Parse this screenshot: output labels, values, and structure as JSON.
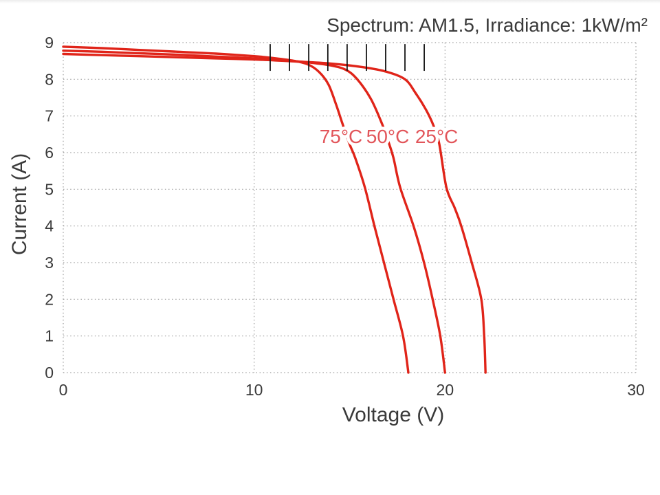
{
  "page": {
    "background": "#ffffff"
  },
  "chart_data": {
    "type": "line",
    "title": "Spectrum: AM1.5, Irradiance: 1kW/m²",
    "xlabel": "Voltage (V)",
    "ylabel": "Current (A)",
    "xlim": [
      0,
      30
    ],
    "ylim": [
      0,
      9
    ],
    "x_ticks": [
      0,
      10,
      20,
      30
    ],
    "y_ticks": [
      0,
      1,
      2,
      3,
      4,
      5,
      6,
      7,
      8,
      9
    ],
    "grid": "dotted",
    "legend_position": "inline-labels",
    "colors": {
      "curve": "#e02419",
      "curve_label": "#e2555a",
      "grid": "#9d9d9d",
      "text": "#3a3a3a",
      "marker_tick": "#141414"
    },
    "series": [
      {
        "name": "75°C",
        "label_v": 14.55,
        "label_i": 6.45,
        "points": [
          [
            0,
            8.89
          ],
          [
            2,
            8.85
          ],
          [
            4,
            8.8
          ],
          [
            6,
            8.75
          ],
          [
            8,
            8.7
          ],
          [
            10,
            8.63
          ],
          [
            11,
            8.58
          ],
          [
            12,
            8.51
          ],
          [
            12.8,
            8.41
          ],
          [
            13.4,
            8.2
          ],
          [
            13.9,
            7.85
          ],
          [
            14.3,
            7.3
          ],
          [
            14.6,
            6.83
          ],
          [
            15,
            6.23
          ],
          [
            15.3,
            5.85
          ],
          [
            15.8,
            5.05
          ],
          [
            16.3,
            4
          ],
          [
            16.8,
            3
          ],
          [
            17.3,
            2
          ],
          [
            17.8,
            1
          ],
          [
            18.08,
            0
          ]
        ]
      },
      {
        "name": "50°C",
        "label_v": 17.0,
        "label_i": 6.45,
        "points": [
          [
            0,
            8.78
          ],
          [
            2,
            8.75
          ],
          [
            4,
            8.71
          ],
          [
            6,
            8.67
          ],
          [
            8,
            8.62
          ],
          [
            10,
            8.57
          ],
          [
            12,
            8.5
          ],
          [
            13,
            8.45
          ],
          [
            14,
            8.38
          ],
          [
            14.8,
            8.26
          ],
          [
            15.4,
            8
          ],
          [
            16.1,
            7.48
          ],
          [
            16.65,
            6.85
          ],
          [
            17,
            6.35
          ],
          [
            17.3,
            5.85
          ],
          [
            17.65,
            5.05
          ],
          [
            18.35,
            4
          ],
          [
            18.9,
            3
          ],
          [
            19.35,
            2
          ],
          [
            19.75,
            1
          ],
          [
            20,
            0
          ]
        ]
      },
      {
        "name": "25°C",
        "label_v": 19.56,
        "label_i": 6.45,
        "points": [
          [
            0,
            8.69
          ],
          [
            2,
            8.66
          ],
          [
            4,
            8.63
          ],
          [
            6,
            8.6
          ],
          [
            8,
            8.57
          ],
          [
            10,
            8.54
          ],
          [
            12,
            8.49
          ],
          [
            14,
            8.43
          ],
          [
            15.7,
            8.33
          ],
          [
            16.9,
            8.21
          ],
          [
            17.9,
            8
          ],
          [
            18.45,
            7.63
          ],
          [
            19,
            7.17
          ],
          [
            19.4,
            6.73
          ],
          [
            19.7,
            6.23
          ],
          [
            20.07,
            5.05
          ],
          [
            20.5,
            4.5
          ],
          [
            20.85,
            4
          ],
          [
            21.4,
            3
          ],
          [
            21.9,
            2
          ],
          [
            22.05,
            1
          ],
          [
            22.12,
            0
          ]
        ]
      }
    ],
    "marker_ticks": {
      "volts": [
        10.84,
        11.85,
        12.86,
        13.86,
        14.87,
        15.88,
        16.89,
        17.9,
        18.91
      ],
      "i_top": 8.96,
      "i_bottom": 8.23
    }
  }
}
